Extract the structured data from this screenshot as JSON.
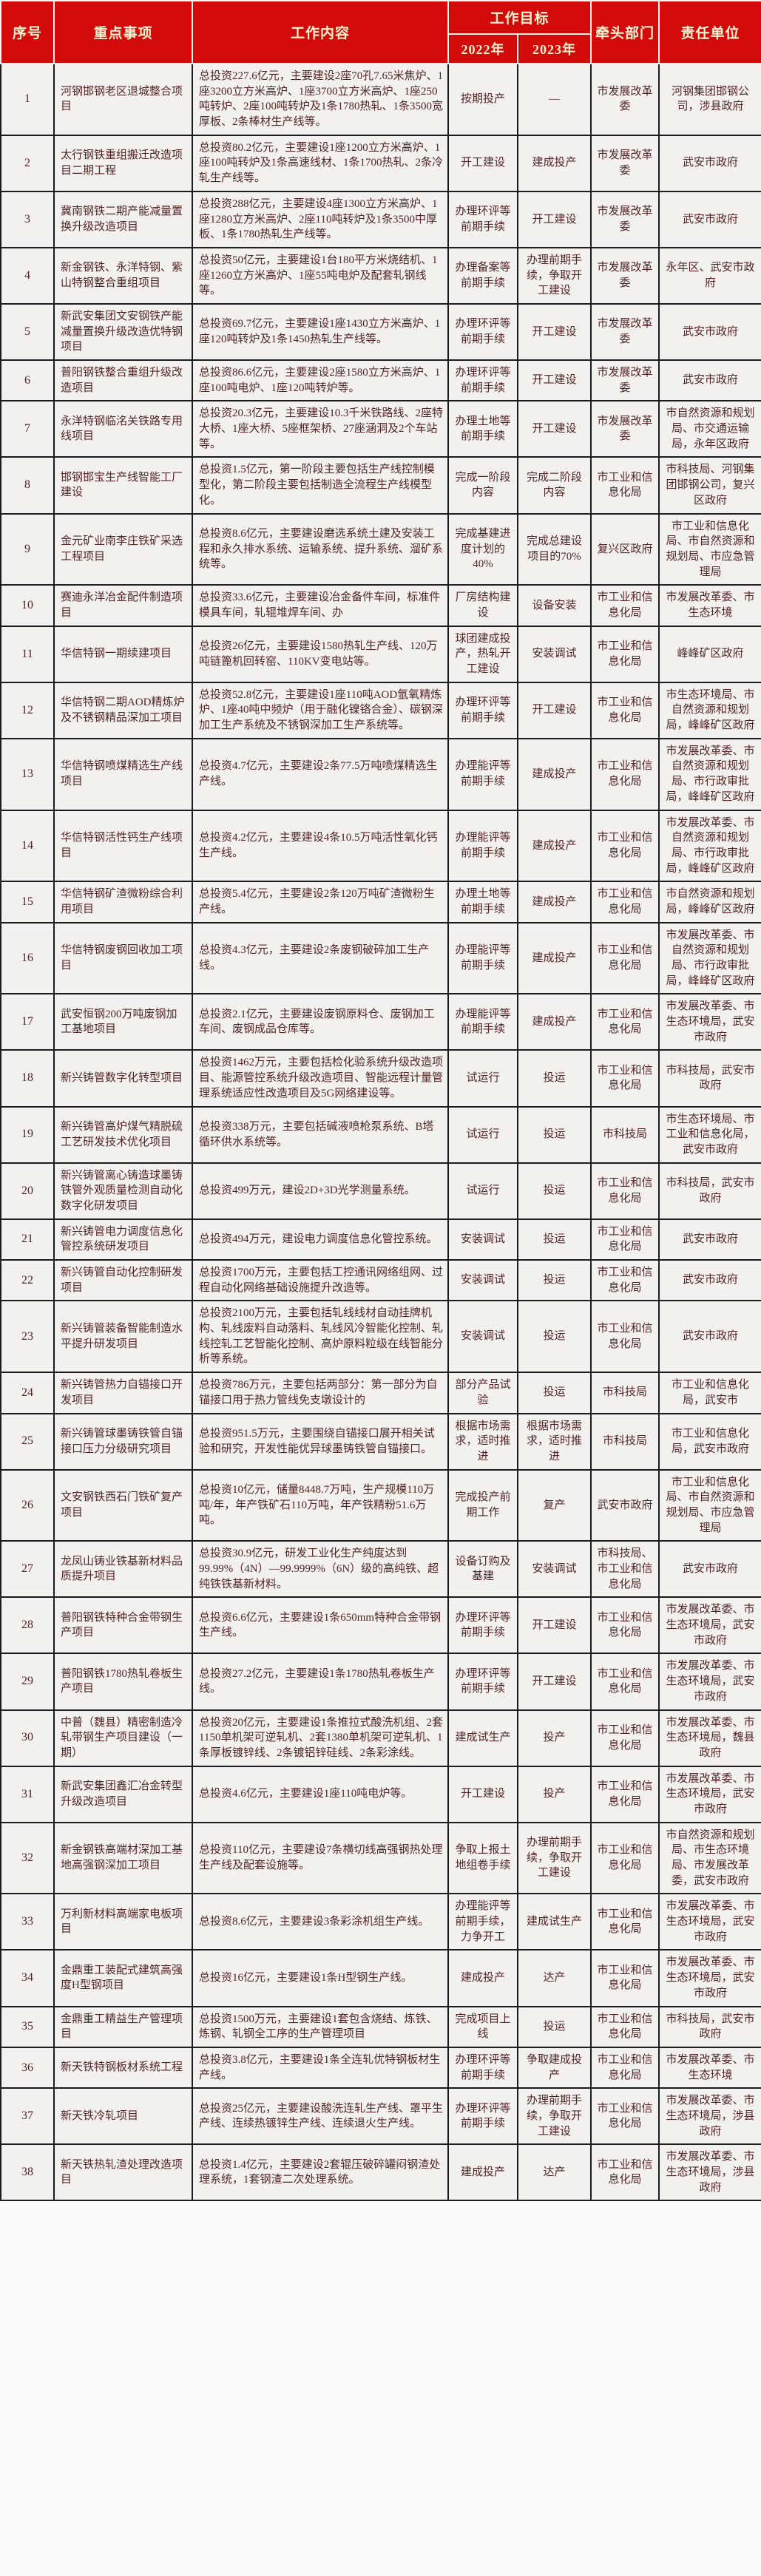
{
  "colors": {
    "header_bg": "#d20a0a",
    "header_text": "#fdf3d1",
    "body_text": "#512525",
    "row_bg": "#f3f1ee",
    "border_dark": "#1c1c1c",
    "border_light": "#f7f5f0"
  },
  "header": {
    "col_seq": "序号",
    "col_item": "重点事项",
    "col_content": "工作内容",
    "col_target": "工作目标",
    "col_2022": "2022年",
    "col_2023": "2023年",
    "col_lead": "牵头部门",
    "col_resp": "责任单位"
  },
  "rows": [
    {
      "no": "1",
      "item": "河钢邯钢老区退城整合项目",
      "content": "总投资227.6亿元，主要建设2座70孔7.65米焦炉、1座3200立方米高炉、1座3700立方米高炉、1座250吨转炉、2座100吨转炉及1条1780热轧、1条3500宽厚板、2条棒材生产线等。",
      "y2022": "按期投产",
      "y2023": "—",
      "lead": "市发展改革委",
      "resp": "河钢集团邯钢公司，涉县政府"
    },
    {
      "no": "2",
      "item": "太行钢铁重组搬迁改造项目二期工程",
      "content": "总投资80.2亿元，主要建设1座1200立方米高炉、1座100吨转炉及1条高速线材、1条1700热轧、2条冷轧生产线等。",
      "y2022": "开工建设",
      "y2023": "建成投产",
      "lead": "市发展改革委",
      "resp": "武安市政府"
    },
    {
      "no": "3",
      "item": "冀南钢铁二期产能减量置换升级改造项目",
      "content": "总投资288亿元，主要建设4座1300立方米高炉、1座1280立方米高炉、2座110吨转炉及1条3500中厚板、1条1780热轧生产线等。",
      "y2022": "办理环评等前期手续",
      "y2023": "开工建设",
      "lead": "市发展改革委",
      "resp": "武安市政府"
    },
    {
      "no": "4",
      "item": "新金钢铁、永洋特钢、紫山特钢整合重组项目",
      "content": "总投资50亿元，主要建设1台180平方米烧结机、1座1260立方米高炉、1座55吨电炉及配套轧钢线等。",
      "y2022": "办理备案等前期手续",
      "y2023": "办理前期手续，争取开工建设",
      "lead": "市发展改革委",
      "resp": "永年区、武安市政府"
    },
    {
      "no": "5",
      "item": "新武安集团文安钢铁产能减量置换升级改造优特钢项目",
      "content": "总投资69.7亿元，主要建设1座1430立方米高炉、1座120吨转炉及1条1450热轧生产线等。",
      "y2022": "办理环评等前期手续",
      "y2023": "开工建设",
      "lead": "市发展改革委",
      "resp": "武安市政府"
    },
    {
      "no": "6",
      "item": "普阳钢铁整合重组升级改造项目",
      "content": "总投资86.6亿元，主要建设2座1580立方米高炉、1座100吨电炉、1座120吨转炉等。",
      "y2022": "办理环评等前期手续",
      "y2023": "开工建设",
      "lead": "市发展改革委",
      "resp": "武安市政府"
    },
    {
      "no": "7",
      "item": "永洋特钢临洺关铁路专用线项目",
      "content": "总投资20.3亿元，主要建设10.3千米铁路线、2座特大桥、1座大桥、5座框架桥、27座涵洞及2个车站等。",
      "y2022": "办理土地等前期手续",
      "y2023": "开工建设",
      "lead": "市发展改革委",
      "resp": "市自然资源和规划局、市交通运输局，永年区政府"
    },
    {
      "no": "8",
      "item": "邯钢邯宝生产线智能工厂建设",
      "content": "总投资1.5亿元，第一阶段主要包括生产线控制模型化，第二阶段主要包括制造全流程生产线模型化。",
      "y2022": "完成一阶段内容",
      "y2023": "完成二阶段内容",
      "lead": "市工业和信息化局",
      "resp": "市科技局、河钢集团邯钢公司，复兴区政府"
    },
    {
      "no": "9",
      "item": "金元矿业南李庄铁矿采选工程项目",
      "content": "总投资8.6亿元，主要建设磨选系统土建及安装工程和永久排水系统、运输系统、提升系统、溜矿系统等。",
      "y2022": "完成基建进度计划的40%",
      "y2023": "完成总建设项目的70%",
      "lead": "复兴区政府",
      "resp": "市工业和信息化局、市自然资源和规划局、市应急管理局"
    },
    {
      "no": "10",
      "item": "赛迪永洋冶金配件制造项目",
      "content": "总投资33.6亿元，主要建设冶金备件车间，标准件模具车间，轧辊堆焊车间、办",
      "y2022": "厂房结构建设",
      "y2023": "设备安装",
      "lead": "市工业和信息化局",
      "resp": "市发展改革委、市生态环境"
    },
    {
      "no": "11",
      "item": "华信特钢一期续建项目",
      "content": "总投资26亿元，主要建设1580热轧生产线、120万吨链篦机回转窑、110KV变电站等。",
      "y2022": "球团建成投产，热轧开工建设",
      "y2023": "安装调试",
      "lead": "市工业和信息化局",
      "resp": "峰峰矿区政府"
    },
    {
      "no": "12",
      "item": "华信特钢二期AOD精炼炉及不锈钢精品深加工项目",
      "content": "总投资52.8亿元，主要建设1座110吨AOD氩氧精炼炉、1座40吨中频炉（用于融化镍铬合金）、碳钢深加工生产系统及不锈钢深加工生产系统等。",
      "y2022": "办理环评等前期手续",
      "y2023": "开工建设",
      "lead": "市工业和信息化局",
      "resp": "市生态环境局、市自然资源和规划局，峰峰矿区政府"
    },
    {
      "no": "13",
      "item": "华信特钢喷煤精选生产线项目",
      "content": "总投资4.7亿元，主要建设2条77.5万吨喷煤精选生产线。",
      "y2022": "办理能评等前期手续",
      "y2023": "建成投产",
      "lead": "市工业和信息化局",
      "resp": "市发展改革委、市自然资源和规划局、市行政审批局，峰峰矿区政府"
    },
    {
      "no": "14",
      "item": "华信特钢活性钙生产线项目",
      "content": "总投资4.2亿元，主要建设4条10.5万吨活性氧化钙生产线。",
      "y2022": "办理能评等前期手续",
      "y2023": "建成投产",
      "lead": "市工业和信息化局",
      "resp": "市发展改革委、市自然资源和规划局、市行政审批局，峰峰矿区政府"
    },
    {
      "no": "15",
      "item": "华信特钢矿渣微粉综合利用项目",
      "content": "总投资5.4亿元，主要建设2条120万吨矿渣微粉生产线。",
      "y2022": "办理土地等前期手续",
      "y2023": "建成投产",
      "lead": "市工业和信息化局",
      "resp": "市自然资源和规划局，峰峰矿区政府"
    },
    {
      "no": "16",
      "item": "华信特钢废钢回收加工项目",
      "content": "总投资4.3亿元，主要建设2条废钢破碎加工生产线。",
      "y2022": "办理能评等前期手续",
      "y2023": "建成投产",
      "lead": "市工业和信息化局",
      "resp": "市发展改革委、市自然资源和规划局、市行政审批局，峰峰矿区政府"
    },
    {
      "no": "17",
      "item": "武安恒钢200万吨废钢加工基地项目",
      "content": "总投资2.1亿元，主要建设废钢原料仓、废钢加工车间、废钢成品仓库等。",
      "y2022": "办理能评等前期手续",
      "y2023": "建成投产",
      "lead": "市工业和信息化局",
      "resp": "市发展改革委、市生态环境局，武安市政府"
    },
    {
      "no": "18",
      "item": "新兴铸管数字化转型项目",
      "content": "总投资1462万元，主要包括检化验系统升级改造项目、能源管控系统升级改造项目、智能远程计量管理系统适应性改造项目及5G网络建设等。",
      "y2022": "试运行",
      "y2023": "投运",
      "lead": "市工业和信息化局",
      "resp": "市科技局，武安市政府"
    },
    {
      "no": "19",
      "item": "新兴铸管高炉煤气精脱硫工艺研发技术优化项目",
      "content": "总投资338万元，主要包括碱液喷枪泵系统、B塔循环供水系统等。",
      "y2022": "试运行",
      "y2023": "投运",
      "lead": "市科技局",
      "resp": "市生态环境局、市工业和信息化局，武安市政府"
    },
    {
      "no": "20",
      "item": "新兴铸管离心铸造球墨铸铁管外观质量检测自动化数字化研发项目",
      "content": "总投资499万元，建设2D+3D光学测量系统。",
      "y2022": "试运行",
      "y2023": "投运",
      "lead": "市工业和信息化局",
      "resp": "市科技局，武安市政府"
    },
    {
      "no": "21",
      "item": "新兴铸管电力调度信息化管控系统研发项目",
      "content": "总投资494万元，建设电力调度信息化管控系统。",
      "y2022": "安装调试",
      "y2023": "投运",
      "lead": "市工业和信息化局",
      "resp": "武安市政府"
    },
    {
      "no": "22",
      "item": "新兴铸管自动化控制研发项目",
      "content": "总投资1700万元，主要包括工控通讯网络组网、过程自动化网络基础设施提升改造等。",
      "y2022": "安装调试",
      "y2023": "投运",
      "lead": "市工业和信息化局",
      "resp": "武安市政府"
    },
    {
      "no": "23",
      "item": "新兴铸管装备智能制造水平提升研发项目",
      "content": "总投资2100万元，主要包括轧线线材自动挂牌机构、轧线废料自动落料、轧线风冷智能化控制、轧线控轧工艺智能化控制、高炉原料粒级在线智能分析等系统。",
      "y2022": "安装调试",
      "y2023": "投运",
      "lead": "市工业和信息化局",
      "resp": "武安市政府"
    },
    {
      "no": "24",
      "item": "新兴铸管热力自锚接口开发项目",
      "content": "总投资786万元，主要包括两部分：第一部分为自锚接口用于热力管线免支墩设计的",
      "y2022": "部分产品试验",
      "y2023": "投运",
      "lead": "市科技局",
      "resp": "市工业和信息化局，武安市"
    },
    {
      "no": "25",
      "item": "新兴铸管球墨铸铁管自锚接口压力分级研究项目",
      "content": "总投资951.5万元，主要围绕自锚接口展开相关试验和研究，开发性能优异球墨铸铁管自锚接口。",
      "y2022": "根据市场需求，适时推进",
      "y2023": "根据市场需求，适时推进",
      "lead": "市科技局",
      "resp": "市工业和信息化局，武安市政府"
    },
    {
      "no": "26",
      "item": "文安钢铁西石门铁矿复产项目",
      "content": "总投资10亿元，储量8448.7万吨，生产规模110万吨/年，年产铁矿石110万吨，年产铁精粉51.6万吨。",
      "y2022": "完成投产前期工作",
      "y2023": "复产",
      "lead": "武安市政府",
      "resp": "市工业和信息化局、市自然资源和规划局、市应急管理局"
    },
    {
      "no": "27",
      "item": "龙凤山铸业铁基新材料品质提升项目",
      "content": "总投资30.9亿元，研发工业化生产纯度达到99.99%（4N）—99.9999%（6N）级的高纯铁、超纯铁铁基新材料。",
      "y2022": "设备订购及基建",
      "y2023": "安装调试",
      "lead": "市科技局、市工业和信息化局",
      "resp": "武安市政府"
    },
    {
      "no": "28",
      "item": "普阳钢铁特种合金带钢生产项目",
      "content": "总投资6.6亿元，主要建设1条650mm特种合金带钢生产线。",
      "y2022": "办理环评等前期手续",
      "y2023": "开工建设",
      "lead": "市工业和信息化局",
      "resp": "市发展改革委、市生态环境局，武安市政府"
    },
    {
      "no": "29",
      "item": "普阳钢铁1780热轧卷板生产项目",
      "content": "总投资27.2亿元，主要建设1条1780热轧卷板生产线。",
      "y2022": "办理环评等前期手续",
      "y2023": "开工建设",
      "lead": "市工业和信息化局",
      "resp": "市发展改革委、市生态环境局，武安市政府"
    },
    {
      "no": "30",
      "item": "中普（魏县）精密制造冷轧带钢生产项目建设（一期）",
      "content": "总投资20亿元，主要建设1条推拉式酸洗机组、2套1150单机架可逆轧机、2套1380单机架可逆轧机、1条厚板镀锌线、2条镀铝锌硅线、2条彩涂线。",
      "y2022": "建成试生产",
      "y2023": "投产",
      "lead": "市工业和信息化局",
      "resp": "市发展改革委、市生态环境局，魏县政府"
    },
    {
      "no": "31",
      "item": "新武安集团鑫汇冶金转型升级改造项目",
      "content": "总投资4.6亿元，主要建设1座110吨电炉等。",
      "y2022": "开工建设",
      "y2023": "投产",
      "lead": "市工业和信息化局",
      "resp": "市发展改革委、市生态环境局，武安市政府"
    },
    {
      "no": "32",
      "item": "新金钢铁高端材深加工基地高强钢深加工项目",
      "content": "总投资110亿元，主要建设7条横切线高强钢热处理生产线及配套设施等。",
      "y2022": "争取上报土地组卷手续",
      "y2023": "办理前期手续，争取开工建设",
      "lead": "市工业和信息化局",
      "resp": "市自然资源和规划局、市生态环境局、市发展改革委，武安市政府"
    },
    {
      "no": "33",
      "item": "万利新材料高端家电板项目",
      "content": "总投资8.6亿元，主要建设3条彩涂机组生产线。",
      "y2022": "办理能评等前期手续，力争开工",
      "y2023": "建成试生产",
      "lead": "市工业和信息化局",
      "resp": "市发展改革委、市生态环境局，武安市政府"
    },
    {
      "no": "34",
      "item": "金鼎重工装配式建筑高强度H型钢项目",
      "content": "总投资16亿元，主要建设1条H型钢生产线。",
      "y2022": "建成投产",
      "y2023": "达产",
      "lead": "市工业和信息化局",
      "resp": "市发展改革委、市生态环境局，武安市政府"
    },
    {
      "no": "35",
      "item": "金鼎重工精益生产管理项目",
      "content": "总投资1500万元，主要建设1套包含烧结、炼铁、炼钢、轧钢全工序的生产管理项目",
      "y2022": "完成项目上线",
      "y2023": "投运",
      "lead": "市工业和信息化局",
      "resp": "市科技局，武安市政府"
    },
    {
      "no": "36",
      "item": "新天铁特钢板材系统工程",
      "content": "总投资3.8亿元，主要建设1条全连轧优特钢板材生产线。",
      "y2022": "办理环评等前期手续",
      "y2023": "争取建成投产",
      "lead": "市工业和信息化局",
      "resp": "市发展改革委、市生态环境"
    },
    {
      "no": "37",
      "item": "新天铁冷轧项目",
      "content": "总投资25亿元，主要建设酸洗连轧生产线、罩平生产线、连续热镀锌生产线、连续退火生产线。",
      "y2022": "办理环评等前期手续",
      "y2023": "办理前期手续，争取开工建设",
      "lead": "市工业和信息化局",
      "resp": "市发展改革委、市生态环境局，涉县政府"
    },
    {
      "no": "38",
      "item": "新天铁热轧渣处理改造项目",
      "content": "总投资1.4亿元，主要建设2套辊压破碎罐闷钢渣处理系统，1套钢渣二次处理系统。",
      "y2022": "建成投产",
      "y2023": "达产",
      "lead": "市工业和信息化局",
      "resp": "市发展改革委、市生态环境局，涉县政府"
    }
  ]
}
